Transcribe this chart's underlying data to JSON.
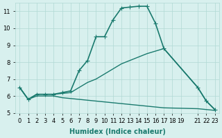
{
  "lines": [
    {
      "x": [
        0,
        1,
        2,
        3,
        4,
        5,
        6,
        7,
        8,
        9,
        10,
        11,
        12,
        13,
        14,
        15,
        16,
        17,
        21,
        22,
        23
      ],
      "y": [
        6.5,
        5.8,
        6.1,
        6.1,
        6.1,
        6.2,
        6.3,
        7.5,
        8.1,
        9.5,
        9.5,
        10.5,
        11.2,
        11.25,
        11.3,
        11.3,
        10.3,
        8.8,
        6.5,
        5.7,
        5.2
      ],
      "color": "#1a7a6e",
      "marker": "+",
      "markersize": 5,
      "linewidth": 1.2
    },
    {
      "x": [
        0,
        1,
        2,
        3,
        4,
        5,
        6,
        7,
        8,
        9,
        10,
        11,
        12,
        13,
        14,
        15,
        16,
        17,
        21,
        22,
        23
      ],
      "y": [
        6.5,
        5.8,
        6.0,
        6.0,
        6.0,
        5.9,
        5.85,
        5.8,
        5.75,
        5.7,
        5.65,
        5.6,
        5.55,
        5.5,
        5.45,
        5.4,
        5.35,
        5.3,
        5.25,
        5.2,
        5.15
      ],
      "color": "#1a7a6e",
      "marker": null,
      "markersize": 0,
      "linewidth": 1.0
    },
    {
      "x": [
        0,
        1,
        2,
        3,
        4,
        5,
        6,
        7,
        8,
        9,
        10,
        11,
        12,
        13,
        14,
        15,
        16,
        17,
        21,
        22,
        23
      ],
      "y": [
        6.5,
        5.8,
        6.1,
        6.1,
        6.1,
        6.15,
        6.2,
        6.5,
        6.8,
        7.0,
        7.3,
        7.6,
        7.9,
        8.1,
        8.3,
        8.5,
        8.65,
        8.8,
        6.5,
        5.7,
        5.2
      ],
      "color": "#1a7a6e",
      "marker": null,
      "markersize": 0,
      "linewidth": 1.0
    }
  ],
  "xlim": [
    -0.5,
    23.5
  ],
  "ylim": [
    5.0,
    11.5
  ],
  "yticks": [
    5,
    6,
    7,
    8,
    9,
    10,
    11
  ],
  "xtick_positions": [
    0,
    1,
    2,
    3,
    4,
    5,
    6,
    7,
    8,
    9,
    10,
    11,
    12,
    13,
    14,
    15,
    16,
    17,
    18,
    19,
    21,
    22,
    23
  ],
  "xticklabels": [
    "0",
    "1",
    "2",
    "3",
    "4",
    "5",
    "6",
    "7",
    "8",
    "9",
    "10",
    "11",
    "12",
    "13",
    "14",
    "15",
    "16",
    "17",
    "18",
    "19",
    "21",
    "22",
    "23"
  ],
  "xlabel": "Humidex (Indice chaleur)",
  "bg_color": "#d8f0ee",
  "grid_color": "#b0d8d4",
  "line_color": "#1a7a6e",
  "tick_fontsize": 6,
  "xlabel_fontsize": 7
}
